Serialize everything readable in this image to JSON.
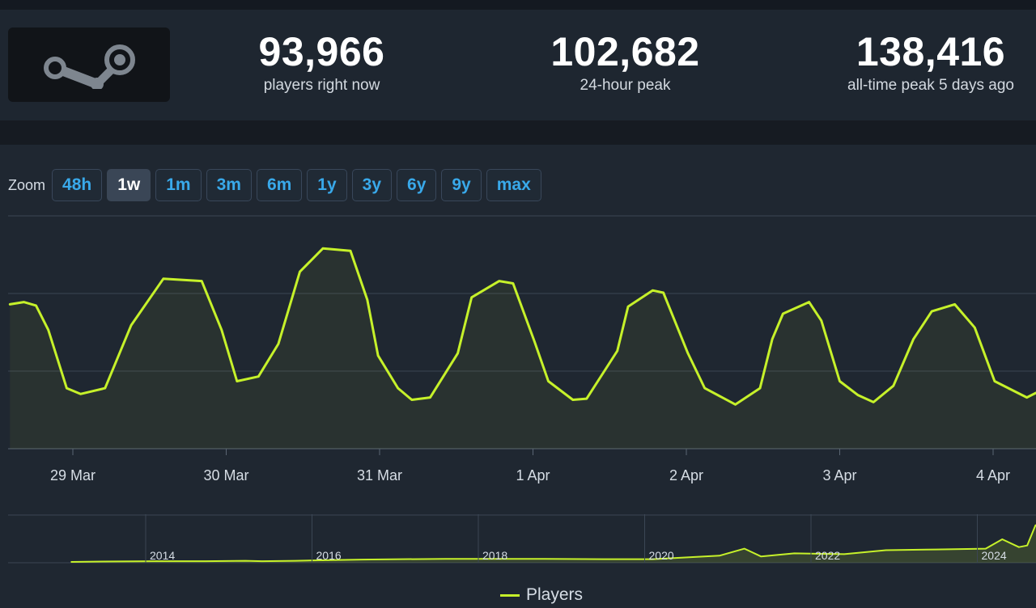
{
  "stats": [
    {
      "value": "93,966",
      "label": "players right now"
    },
    {
      "value": "102,682",
      "label": "24-hour peak"
    },
    {
      "value": "138,416",
      "label": "all-time peak 5 days ago"
    }
  ],
  "zoom": {
    "label": "Zoom",
    "options": [
      "48h",
      "1w",
      "1m",
      "3m",
      "6m",
      "1y",
      "3y",
      "6y",
      "9y",
      "max"
    ],
    "active": "1w"
  },
  "colors": {
    "line": "#c6f12a",
    "accent": "#39a9ea",
    "background": "#1f2731"
  },
  "icons": {
    "logo": "steam-logo-icon"
  },
  "chart_data": [
    {
      "type": "line",
      "x_tick_labels": [
        "29 Mar",
        "30 Mar",
        "31 Mar",
        "1 Apr",
        "2 Apr",
        "3 Apr",
        "4 Apr"
      ],
      "ylim": [
        40000,
        140000
      ],
      "grid": true,
      "series": [
        {
          "name": "Players",
          "points": [
            [
              -0.41,
              102000
            ],
            [
              -0.32,
              103000
            ],
            [
              -0.24,
              101500
            ],
            [
              -0.16,
              91000
            ],
            [
              -0.04,
              66000
            ],
            [
              0.05,
              63500
            ],
            [
              0.21,
              66000
            ],
            [
              0.38,
              93000
            ],
            [
              0.59,
              113000
            ],
            [
              0.84,
              112000
            ],
            [
              0.97,
              91000
            ],
            [
              1.07,
              69000
            ],
            [
              1.21,
              71000
            ],
            [
              1.34,
              85000
            ],
            [
              1.48,
              116000
            ],
            [
              1.63,
              126000
            ],
            [
              1.81,
              125000
            ],
            [
              1.92,
              104000
            ],
            [
              1.99,
              80000
            ],
            [
              2.12,
              66000
            ],
            [
              2.21,
              61000
            ],
            [
              2.33,
              62000
            ],
            [
              2.51,
              81000
            ],
            [
              2.6,
              105000
            ],
            [
              2.78,
              112000
            ],
            [
              2.87,
              111000
            ],
            [
              3.01,
              86000
            ],
            [
              3.1,
              69000
            ],
            [
              3.26,
              61000
            ],
            [
              3.35,
              61500
            ],
            [
              3.55,
              82000
            ],
            [
              3.62,
              101000
            ],
            [
              3.78,
              108000
            ],
            [
              3.85,
              107000
            ],
            [
              4.01,
              81000
            ],
            [
              4.12,
              66000
            ],
            [
              4.32,
              59000
            ],
            [
              4.48,
              66000
            ],
            [
              4.56,
              87000
            ],
            [
              4.63,
              98000
            ],
            [
              4.8,
              103000
            ],
            [
              4.88,
              95000
            ],
            [
              5.0,
              69000
            ],
            [
              5.12,
              63000
            ],
            [
              5.22,
              60000
            ],
            [
              5.35,
              67000
            ],
            [
              5.48,
              87000
            ],
            [
              5.6,
              99000
            ],
            [
              5.75,
              102000
            ],
            [
              5.88,
              92000
            ],
            [
              6.01,
              69000
            ],
            [
              6.13,
              65000
            ],
            [
              6.22,
              62000
            ],
            [
              6.28,
              64000
            ]
          ]
        }
      ]
    },
    {
      "type": "area",
      "role": "navigator",
      "x_tick_labels": [
        "2014",
        "2016",
        "2018",
        "2020",
        "2022",
        "2024"
      ],
      "series": [
        {
          "name": "Players",
          "points": [
            [
              2012.6,
              1000
            ],
            [
              2013.0,
              1500
            ],
            [
              2013.6,
              2000
            ],
            [
              2014.2,
              2000
            ],
            [
              2014.7,
              2500
            ],
            [
              2014.9,
              2000
            ],
            [
              2015.3,
              2500
            ],
            [
              2016.1,
              4000
            ],
            [
              2017.1,
              5000
            ],
            [
              2018.3,
              5000
            ],
            [
              2019.0,
              4500
            ],
            [
              2019.6,
              4500
            ],
            [
              2020.4,
              9000
            ],
            [
              2020.7,
              18000
            ],
            [
              2020.9,
              8000
            ],
            [
              2021.3,
              12000
            ],
            [
              2021.9,
              11000
            ],
            [
              2022.4,
              16000
            ],
            [
              2023.0,
              17000
            ],
            [
              2023.6,
              18000
            ],
            [
              2023.8,
              30000
            ],
            [
              2024.0,
              20000
            ],
            [
              2024.1,
              22000
            ],
            [
              2024.2,
              48000
            ],
            [
              2024.4,
              28000
            ],
            [
              2024.7,
              24000
            ],
            [
              2025.25,
              24000
            ]
          ]
        }
      ]
    }
  ],
  "legend": {
    "series_name": "Players"
  }
}
